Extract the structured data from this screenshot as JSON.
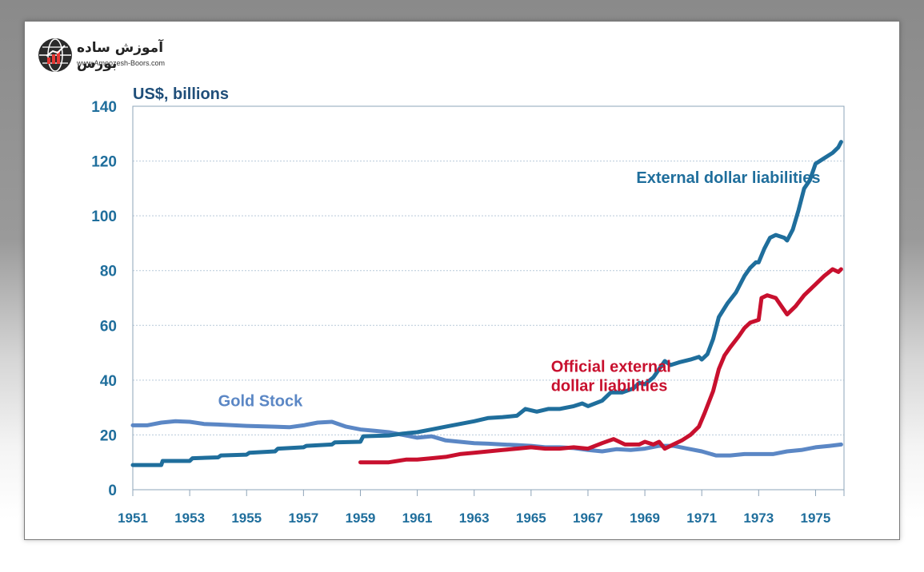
{
  "logo": {
    "text_fa": "آموزش ساده بورس",
    "url": "www.Amoozesh-Boors.com"
  },
  "chart_data": {
    "type": "line",
    "ylabel": "US$, billions",
    "xlim": [
      1951,
      1976
    ],
    "ylim": [
      0,
      140
    ],
    "yticks": [
      "0",
      "20",
      "40",
      "60",
      "80",
      "100",
      "120",
      "140"
    ],
    "ytick_values": [
      0,
      20,
      40,
      60,
      80,
      100,
      120,
      140
    ],
    "xticks": [
      "1951",
      "1953",
      "1955",
      "1957",
      "1959",
      "1961",
      "1963",
      "1965",
      "1967",
      "1969",
      "1971",
      "1973",
      "1975"
    ],
    "xtick_values": [
      1951,
      1953,
      1955,
      1957,
      1959,
      1961,
      1963,
      1965,
      1967,
      1969,
      1971,
      1973,
      1975
    ],
    "grid": true,
    "series": [
      {
        "name": "External dollar liabilities",
        "color": "#1f6e9c",
        "points": [
          [
            1951,
            9
          ],
          [
            1952,
            9
          ],
          [
            1952.05,
            10.5
          ],
          [
            1953,
            10.5
          ],
          [
            1953.1,
            11.5
          ],
          [
            1954,
            11.8
          ],
          [
            1954.1,
            12.5
          ],
          [
            1955,
            12.8
          ],
          [
            1955.1,
            13.5
          ],
          [
            1956,
            14
          ],
          [
            1956.1,
            15
          ],
          [
            1957,
            15.5
          ],
          [
            1957.1,
            16
          ],
          [
            1958,
            16.5
          ],
          [
            1958.1,
            17.3
          ],
          [
            1959,
            17.5
          ],
          [
            1959.1,
            19.5
          ],
          [
            1960,
            19.8
          ],
          [
            1960.5,
            20.5
          ],
          [
            1961,
            21
          ],
          [
            1961.5,
            22
          ],
          [
            1962,
            23
          ],
          [
            1962.5,
            24
          ],
          [
            1963,
            25
          ],
          [
            1963.5,
            26.2
          ],
          [
            1964,
            26.5
          ],
          [
            1964.5,
            27
          ],
          [
            1964.8,
            29.5
          ],
          [
            1965.2,
            28.5
          ],
          [
            1965.6,
            29.5
          ],
          [
            1966,
            29.5
          ],
          [
            1966.5,
            30.5
          ],
          [
            1966.8,
            31.5
          ],
          [
            1967,
            30.5
          ],
          [
            1967.5,
            32.5
          ],
          [
            1967.8,
            35.5
          ],
          [
            1968.2,
            35.5
          ],
          [
            1968.6,
            37
          ],
          [
            1968.8,
            39
          ],
          [
            1969,
            38.5
          ],
          [
            1969.3,
            41
          ],
          [
            1969.5,
            44
          ],
          [
            1969.7,
            47
          ],
          [
            1969.9,
            45.5
          ],
          [
            1970.2,
            46.5
          ],
          [
            1970.6,
            47.5
          ],
          [
            1970.9,
            48.5
          ],
          [
            1971,
            47.5
          ],
          [
            1971.2,
            49.5
          ],
          [
            1971.4,
            55
          ],
          [
            1971.6,
            63
          ],
          [
            1971.9,
            68
          ],
          [
            1972.2,
            72
          ],
          [
            1972.5,
            78
          ],
          [
            1972.7,
            81
          ],
          [
            1972.9,
            83
          ],
          [
            1973,
            83
          ],
          [
            1973.2,
            88
          ],
          [
            1973.4,
            92
          ],
          [
            1973.6,
            93
          ],
          [
            1973.9,
            92
          ],
          [
            1974,
            91
          ],
          [
            1974.2,
            95
          ],
          [
            1974.4,
            102
          ],
          [
            1974.6,
            110
          ],
          [
            1974.8,
            113
          ],
          [
            1975,
            119
          ],
          [
            1975.3,
            121
          ],
          [
            1975.6,
            123
          ],
          [
            1975.8,
            125
          ],
          [
            1975.9,
            127
          ]
        ]
      },
      {
        "name": "Official external dollar liabilities",
        "color": "#c8102e",
        "points": [
          [
            1959,
            10
          ],
          [
            1960,
            10
          ],
          [
            1960.3,
            10.5
          ],
          [
            1960.6,
            11
          ],
          [
            1961,
            11
          ],
          [
            1961.5,
            11.5
          ],
          [
            1962,
            12
          ],
          [
            1962.5,
            13
          ],
          [
            1963,
            13.5
          ],
          [
            1963.5,
            14
          ],
          [
            1964,
            14.5
          ],
          [
            1964.5,
            15
          ],
          [
            1965,
            15.5
          ],
          [
            1965.5,
            15
          ],
          [
            1966,
            15
          ],
          [
            1966.5,
            15.5
          ],
          [
            1967,
            15
          ],
          [
            1967.5,
            17
          ],
          [
            1967.9,
            18.5
          ],
          [
            1968.3,
            16.5
          ],
          [
            1968.8,
            16.5
          ],
          [
            1969,
            17.5
          ],
          [
            1969.3,
            16.5
          ],
          [
            1969.5,
            17.5
          ],
          [
            1969.7,
            15
          ],
          [
            1970,
            16.5
          ],
          [
            1970.3,
            18
          ],
          [
            1970.6,
            20
          ],
          [
            1970.9,
            23
          ],
          [
            1971.1,
            28
          ],
          [
            1971.4,
            36
          ],
          [
            1971.6,
            44
          ],
          [
            1971.8,
            49
          ],
          [
            1972,
            52
          ],
          [
            1972.3,
            56
          ],
          [
            1972.5,
            59
          ],
          [
            1972.7,
            61
          ],
          [
            1973,
            62
          ],
          [
            1973.1,
            70
          ],
          [
            1973.3,
            71
          ],
          [
            1973.6,
            70
          ],
          [
            1973.8,
            67
          ],
          [
            1974,
            64
          ],
          [
            1974.3,
            67
          ],
          [
            1974.6,
            71
          ],
          [
            1975,
            75
          ],
          [
            1975.3,
            78
          ],
          [
            1975.6,
            80.5
          ],
          [
            1975.8,
            79.5
          ],
          [
            1975.9,
            80.5
          ]
        ]
      },
      {
        "name": "Gold Stock",
        "color": "#5b87c5",
        "points": [
          [
            1951,
            23.5
          ],
          [
            1951.5,
            23.5
          ],
          [
            1952,
            24.5
          ],
          [
            1952.5,
            25
          ],
          [
            1953,
            24.8
          ],
          [
            1953.5,
            24
          ],
          [
            1954,
            23.8
          ],
          [
            1955,
            23.3
          ],
          [
            1956,
            23
          ],
          [
            1956.5,
            22.8
          ],
          [
            1957,
            23.5
          ],
          [
            1957.5,
            24.5
          ],
          [
            1958,
            24.8
          ],
          [
            1958.5,
            23
          ],
          [
            1959,
            22
          ],
          [
            1959.5,
            21.5
          ],
          [
            1960,
            21
          ],
          [
            1960.5,
            20
          ],
          [
            1961,
            19
          ],
          [
            1961.5,
            19.5
          ],
          [
            1962,
            18
          ],
          [
            1962.5,
            17.5
          ],
          [
            1963,
            17
          ],
          [
            1963.5,
            16.8
          ],
          [
            1964,
            16.5
          ],
          [
            1964.5,
            16.3
          ],
          [
            1965,
            16
          ],
          [
            1965.5,
            15.5
          ],
          [
            1966,
            15.5
          ],
          [
            1966.5,
            15.2
          ],
          [
            1967,
            14.5
          ],
          [
            1967.5,
            14
          ],
          [
            1968,
            14.8
          ],
          [
            1968.5,
            14.5
          ],
          [
            1969,
            15
          ],
          [
            1969.5,
            16
          ],
          [
            1970,
            16
          ],
          [
            1970.5,
            15
          ],
          [
            1971,
            14
          ],
          [
            1971.5,
            12.5
          ],
          [
            1972,
            12.5
          ],
          [
            1972.5,
            13
          ],
          [
            1973,
            13
          ],
          [
            1973.5,
            13
          ],
          [
            1974,
            14
          ],
          [
            1974.5,
            14.5
          ],
          [
            1975,
            15.5
          ],
          [
            1975.5,
            16
          ],
          [
            1975.9,
            16.5
          ]
        ]
      }
    ],
    "annotations": [
      {
        "text": "External dollar liabilities",
        "color": "#1f6e9c",
        "x": 1968.7,
        "y": 112
      },
      {
        "text": "Official external",
        "color": "#c8102e",
        "x": 1965.7,
        "y": 43
      },
      {
        "text": "dollar liabilities",
        "color": "#c8102e",
        "x": 1965.7,
        "y": 36
      },
      {
        "text": "Gold Stock",
        "color": "#5b87c5",
        "x": 1954,
        "y": 30.5
      }
    ],
    "axis_color": "#1f6e9c"
  }
}
